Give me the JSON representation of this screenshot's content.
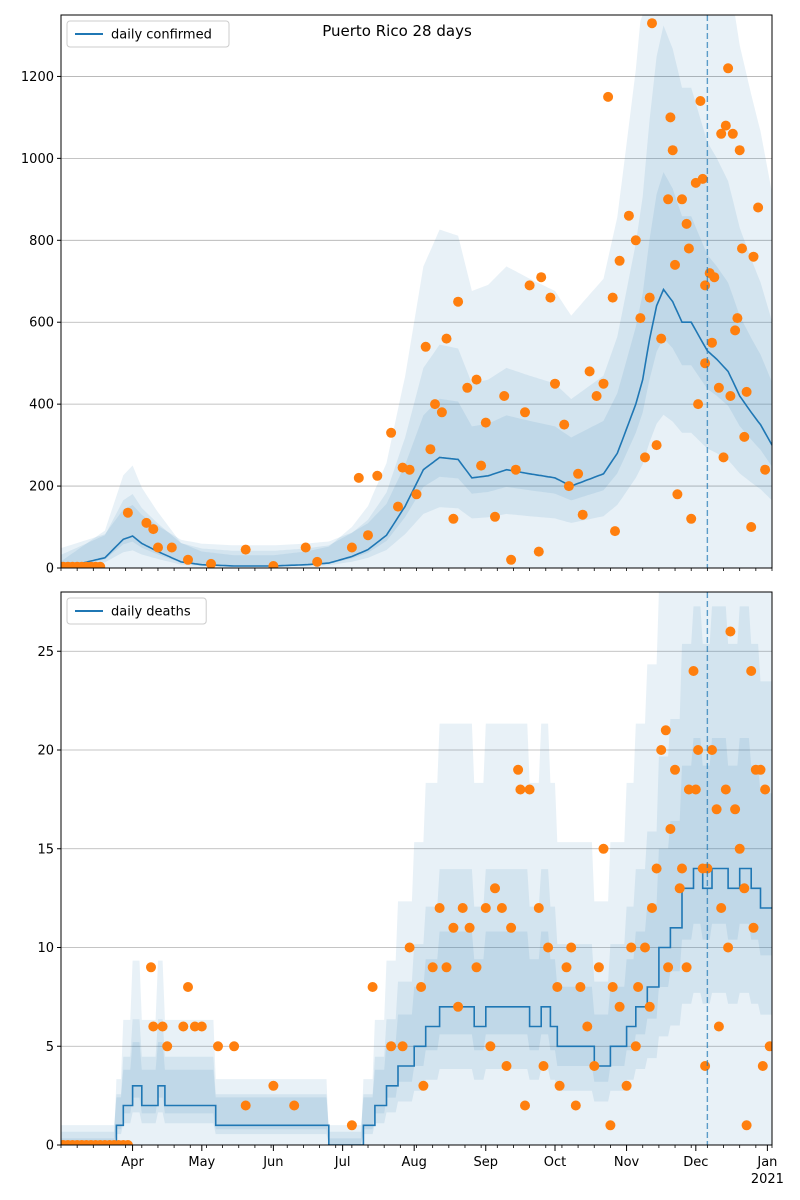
{
  "figure": {
    "title": "Puerto Rico 28 days",
    "colors": {
      "model": "#1f77b4",
      "observed": "#ff7f0e",
      "grid": "#b0b0b0",
      "band": "#1f77b4"
    }
  },
  "chart_data": [
    {
      "type": "line",
      "name": "confirmed",
      "legend": "daily confirmed",
      "legend_position": "upper-left",
      "ylim": [
        0,
        1350
      ],
      "yticks": [
        0,
        200,
        400,
        600,
        800,
        1000,
        1200
      ],
      "xlim": [
        "2020-03-01",
        "2021-01-03"
      ],
      "grid": "y",
      "vline": "2020-12-06",
      "model_keypoints": [
        [
          "03-01",
          0
        ],
        [
          "03-20",
          25
        ],
        [
          "03-28",
          70
        ],
        [
          "04-01",
          78
        ],
        [
          "04-05",
          60
        ],
        [
          "04-12",
          40
        ],
        [
          "04-22",
          15
        ],
        [
          "05-01",
          8
        ],
        [
          "05-15",
          5
        ],
        [
          "06-01",
          5
        ],
        [
          "06-15",
          8
        ],
        [
          "06-25",
          12
        ],
        [
          "07-05",
          28
        ],
        [
          "07-12",
          45
        ],
        [
          "07-20",
          80
        ],
        [
          "07-28",
          150
        ],
        [
          "08-05",
          240
        ],
        [
          "08-12",
          270
        ],
        [
          "08-20",
          265
        ],
        [
          "08-26",
          220
        ],
        [
          "09-02",
          225
        ],
        [
          "09-10",
          240
        ],
        [
          "09-20",
          230
        ],
        [
          "10-01",
          220
        ],
        [
          "10-08",
          200
        ],
        [
          "10-15",
          215
        ],
        [
          "10-22",
          230
        ],
        [
          "10-28",
          280
        ],
        [
          "11-01",
          340
        ],
        [
          "11-05",
          400
        ],
        [
          "11-08",
          460
        ],
        [
          "11-11",
          560
        ],
        [
          "11-14",
          640
        ],
        [
          "11-17",
          680
        ],
        [
          "11-21",
          650
        ],
        [
          "11-25",
          600
        ],
        [
          "11-29",
          600
        ],
        [
          "12-03",
          560
        ],
        [
          "12-06",
          530
        ],
        [
          "12-10",
          510
        ],
        [
          "12-15",
          480
        ],
        [
          "12-20",
          420
        ],
        [
          "12-25",
          380
        ],
        [
          "12-29",
          350
        ],
        [
          "01-03",
          300
        ]
      ],
      "band_halfwidth_fraction": [
        0.35,
        0.9,
        2.0
      ],
      "observed": [
        [
          "03-30",
          135
        ],
        [
          "04-07",
          110
        ],
        [
          "04-10",
          95
        ],
        [
          "04-12",
          50
        ],
        [
          "05-20",
          45
        ],
        [
          "06-15",
          50
        ],
        [
          "07-05",
          50
        ],
        [
          "07-08",
          220
        ],
        [
          "07-16",
          225
        ],
        [
          "07-22",
          330
        ],
        [
          "07-27",
          245
        ],
        [
          "07-30",
          240
        ],
        [
          "08-02",
          180
        ],
        [
          "08-06",
          540
        ],
        [
          "08-08",
          290
        ],
        [
          "08-10",
          400
        ],
        [
          "08-13",
          380
        ],
        [
          "08-15",
          560
        ],
        [
          "08-20",
          650
        ],
        [
          "08-24",
          440
        ],
        [
          "08-28",
          460
        ],
        [
          "09-01",
          355
        ],
        [
          "09-05",
          125
        ],
        [
          "09-09",
          420
        ],
        [
          "09-14",
          240
        ],
        [
          "09-18",
          380
        ],
        [
          "09-20",
          690
        ],
        [
          "09-25",
          710
        ],
        [
          "09-29",
          660
        ],
        [
          "10-01",
          450
        ],
        [
          "10-05",
          350
        ],
        [
          "10-11",
          230
        ],
        [
          "10-16",
          480
        ],
        [
          "10-19",
          420
        ],
        [
          "10-22",
          450
        ],
        [
          "10-24",
          1150
        ],
        [
          "10-26",
          660
        ],
        [
          "10-29",
          750
        ],
        [
          "11-02",
          860
        ],
        [
          "11-05",
          800
        ],
        [
          "11-07",
          610
        ],
        [
          "11-11",
          660
        ],
        [
          "11-12",
          1330
        ],
        [
          "11-16",
          560
        ],
        [
          "11-19",
          900
        ],
        [
          "11-20",
          1100
        ],
        [
          "11-21",
          1020
        ],
        [
          "11-22",
          740
        ],
        [
          "11-25",
          900
        ],
        [
          "11-27",
          840
        ],
        [
          "11-28",
          780
        ],
        [
          "12-01",
          940
        ],
        [
          "12-03",
          1140
        ],
        [
          "12-04",
          950
        ],
        [
          "12-05",
          690
        ],
        [
          "12-07",
          720
        ],
        [
          "12-09",
          710
        ],
        [
          "12-11",
          440
        ],
        [
          "12-12",
          1060
        ],
        [
          "12-14",
          1080
        ],
        [
          "12-15",
          1220
        ],
        [
          "12-17",
          1060
        ],
        [
          "12-18",
          580
        ],
        [
          "12-19",
          610
        ],
        [
          "12-20",
          1020
        ],
        [
          "12-21",
          780
        ],
        [
          "12-23",
          430
        ],
        [
          "12-25",
          100
        ],
        [
          "12-26",
          760
        ],
        [
          "12-28",
          880
        ],
        [
          "12-31",
          240
        ],
        [
          "04-18",
          50
        ],
        [
          "04-25",
          20
        ],
        [
          "05-05",
          10
        ],
        [
          "06-01",
          5
        ],
        [
          "06-20",
          15
        ],
        [
          "07-12",
          80
        ],
        [
          "07-25",
          150
        ],
        [
          "08-18",
          120
        ],
        [
          "08-30",
          250
        ],
        [
          "09-12",
          20
        ],
        [
          "09-24",
          40
        ],
        [
          "10-07",
          200
        ],
        [
          "10-13",
          130
        ],
        [
          "10-27",
          90
        ],
        [
          "11-09",
          270
        ],
        [
          "11-14",
          300
        ],
        [
          "11-23",
          180
        ],
        [
          "11-29",
          120
        ],
        [
          "12-02",
          400
        ],
        [
          "12-05",
          500
        ],
        [
          "12-08",
          550
        ],
        [
          "12-13",
          270
        ],
        [
          "12-16",
          420
        ],
        [
          "12-22",
          320
        ]
      ]
    },
    {
      "type": "line",
      "name": "deaths",
      "legend": "daily deaths",
      "legend_position": "upper-left",
      "ylim": [
        0,
        28
      ],
      "yticks": [
        0,
        5,
        10,
        15,
        20,
        25
      ],
      "xlim": [
        "2020-03-01",
        "2021-01-03"
      ],
      "grid": "y",
      "vline": "2020-12-06",
      "x_tick_labels": [
        "Apr",
        "May",
        "Jun",
        "Jul",
        "Aug",
        "Sep",
        "Oct",
        "Nov",
        "Dec",
        "Jan"
      ],
      "x_tick_dates": [
        "2020-04-01",
        "2020-05-01",
        "2020-06-01",
        "2020-07-01",
        "2020-08-01",
        "2020-09-01",
        "2020-10-01",
        "2020-11-01",
        "2020-12-01",
        "2021-01-01"
      ],
      "year_label": "2021",
      "model_steps": [
        [
          "03-01",
          0
        ],
        [
          "03-25",
          1
        ],
        [
          "03-28",
          2
        ],
        [
          "04-01",
          3
        ],
        [
          "04-05",
          2
        ],
        [
          "04-12",
          3
        ],
        [
          "04-15",
          2
        ],
        [
          "04-22",
          2
        ],
        [
          "05-01",
          2
        ],
        [
          "05-07",
          1
        ],
        [
          "05-15",
          1
        ],
        [
          "06-01",
          1
        ],
        [
          "06-10",
          1
        ],
        [
          "06-25",
          0
        ],
        [
          "07-05",
          0
        ],
        [
          "07-10",
          1
        ],
        [
          "07-15",
          2
        ],
        [
          "07-20",
          3
        ],
        [
          "07-25",
          4
        ],
        [
          "08-01",
          5
        ],
        [
          "08-06",
          6
        ],
        [
          "08-12",
          7
        ],
        [
          "08-20",
          7
        ],
        [
          "08-27",
          6
        ],
        [
          "09-01",
          7
        ],
        [
          "09-12",
          7
        ],
        [
          "09-20",
          6
        ],
        [
          "09-25",
          7
        ],
        [
          "09-29",
          6
        ],
        [
          "10-02",
          5
        ],
        [
          "10-10",
          5
        ],
        [
          "10-18",
          4
        ],
        [
          "10-25",
          5
        ],
        [
          "11-01",
          6
        ],
        [
          "11-05",
          7
        ],
        [
          "11-10",
          8
        ],
        [
          "11-15",
          10
        ],
        [
          "11-20",
          11
        ],
        [
          "11-25",
          13
        ],
        [
          "11-30",
          14
        ],
        [
          "12-04",
          13
        ],
        [
          "12-08",
          14
        ],
        [
          "12-15",
          13
        ],
        [
          "12-20",
          14
        ],
        [
          "12-25",
          13
        ],
        [
          "12-29",
          12
        ],
        [
          "01-03",
          12
        ]
      ],
      "band_halfwidth_fraction": [
        0.4,
        0.9,
        2.0
      ],
      "observed": [
        [
          "04-09",
          9
        ],
        [
          "04-10",
          6
        ],
        [
          "04-14",
          6
        ],
        [
          "04-16",
          5
        ],
        [
          "04-23",
          6
        ],
        [
          "04-25",
          8
        ],
        [
          "04-28",
          6
        ],
        [
          "05-01",
          6
        ],
        [
          "05-08",
          5
        ],
        [
          "05-15",
          5
        ],
        [
          "06-01",
          3
        ],
        [
          "07-14",
          8
        ],
        [
          "07-22",
          5
        ],
        [
          "07-27",
          5
        ],
        [
          "07-30",
          10
        ],
        [
          "08-04",
          8
        ],
        [
          "08-09",
          9
        ],
        [
          "08-12",
          12
        ],
        [
          "08-15",
          9
        ],
        [
          "08-18",
          11
        ],
        [
          "08-22",
          12
        ],
        [
          "08-25",
          11
        ],
        [
          "08-28",
          9
        ],
        [
          "09-01",
          12
        ],
        [
          "09-05",
          13
        ],
        [
          "09-08",
          12
        ],
        [
          "09-12",
          11
        ],
        [
          "09-15",
          19
        ],
        [
          "09-16",
          18
        ],
        [
          "09-20",
          18
        ],
        [
          "09-24",
          12
        ],
        [
          "09-28",
          10
        ],
        [
          "10-02",
          8
        ],
        [
          "10-06",
          9
        ],
        [
          "10-08",
          10
        ],
        [
          "10-12",
          8
        ],
        [
          "10-15",
          6
        ],
        [
          "10-20",
          9
        ],
        [
          "10-22",
          15
        ],
        [
          "10-26",
          8
        ],
        [
          "10-29",
          7
        ],
        [
          "11-03",
          10
        ],
        [
          "11-06",
          8
        ],
        [
          "11-09",
          10
        ],
        [
          "11-12",
          12
        ],
        [
          "11-14",
          14
        ],
        [
          "11-16",
          20
        ],
        [
          "11-18",
          21
        ],
        [
          "11-19",
          9
        ],
        [
          "11-20",
          16
        ],
        [
          "11-22",
          19
        ],
        [
          "11-24",
          13
        ],
        [
          "11-25",
          14
        ],
        [
          "11-28",
          18
        ],
        [
          "11-30",
          24
        ],
        [
          "12-02",
          20
        ],
        [
          "12-04",
          14
        ],
        [
          "12-06",
          14
        ],
        [
          "12-08",
          20
        ],
        [
          "12-10",
          17
        ],
        [
          "12-12",
          12
        ],
        [
          "12-14",
          18
        ],
        [
          "12-16",
          26
        ],
        [
          "12-18",
          17
        ],
        [
          "12-20",
          15
        ],
        [
          "12-22",
          13
        ],
        [
          "12-25",
          24
        ],
        [
          "12-27",
          19
        ],
        [
          "12-29",
          19
        ],
        [
          "12-31",
          18
        ],
        [
          "01-02",
          5
        ],
        [
          "05-20",
          2
        ],
        [
          "06-10",
          2
        ],
        [
          "07-05",
          1
        ],
        [
          "08-05",
          3
        ],
        [
          "08-20",
          7
        ],
        [
          "09-03",
          5
        ],
        [
          "09-10",
          4
        ],
        [
          "09-18",
          2
        ],
        [
          "09-26",
          4
        ],
        [
          "10-03",
          3
        ],
        [
          "10-10",
          2
        ],
        [
          "10-18",
          4
        ],
        [
          "10-25",
          1
        ],
        [
          "11-01",
          3
        ],
        [
          "11-05",
          5
        ],
        [
          "11-11",
          7
        ],
        [
          "11-27",
          9
        ],
        [
          "12-01",
          18
        ],
        [
          "12-05",
          4
        ],
        [
          "12-11",
          6
        ],
        [
          "12-15",
          10
        ],
        [
          "12-23",
          1
        ],
        [
          "12-26",
          11
        ],
        [
          "12-30",
          4
        ]
      ]
    }
  ]
}
